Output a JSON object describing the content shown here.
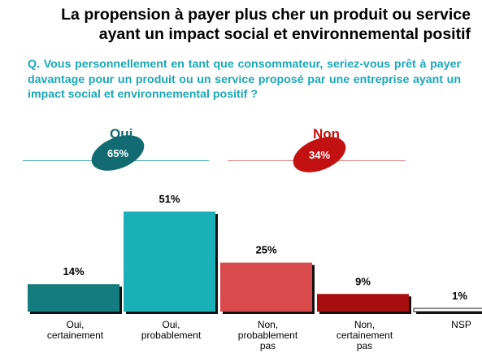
{
  "title": {
    "line1": "La propension à payer plus cher un produit ou service",
    "line2": "ayant un impact social et environnemental positif"
  },
  "question": "Q. Vous personnellement en tant que consommateur, seriez-vous prêt à payer davantage pour un produit ou un service proposé par une entreprise ayant un impact social et environnemental positif ?",
  "groups": {
    "oui": {
      "label": "Oui",
      "value_label": "65%",
      "color": "#126b70"
    },
    "non": {
      "label": "Non",
      "value_label": "34%",
      "color": "#c31111"
    }
  },
  "colors": {
    "question": "#1aa8b7",
    "line_oui": "#46a9b5",
    "line_non": "#e38283"
  },
  "chart_data": {
    "type": "bar",
    "categories": [
      [
        "Oui,",
        "certainement"
      ],
      [
        "Oui,",
        "probablement"
      ],
      [
        "Non,",
        "probablement",
        "pas"
      ],
      [
        "Non,",
        "certainement",
        "pas"
      ],
      [
        "NSP"
      ]
    ],
    "values": [
      14,
      51,
      25,
      9,
      1
    ],
    "value_labels": [
      "14%",
      "51%",
      "25%",
      "9%",
      "1%"
    ],
    "colors": [
      "#147b7e",
      "#1ab0b8",
      "#d94a4c",
      "#a50d0f",
      "#ffffff"
    ],
    "ylim": [
      0,
      51
    ],
    "grid": false
  }
}
